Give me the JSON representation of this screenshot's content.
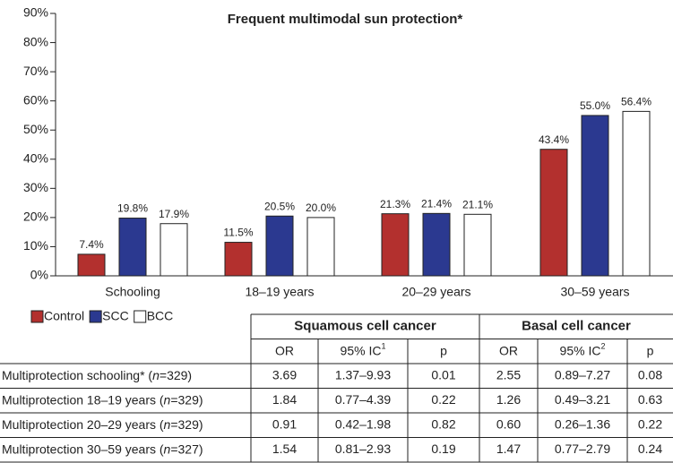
{
  "chart_data": {
    "type": "bar",
    "title": "Frequent multimodal sun protection*",
    "categories": [
      "Schooling",
      "18–19 years",
      "20–29 years",
      "30–59 years"
    ],
    "series": [
      {
        "name": "Control",
        "color": "#b3302e",
        "values": [
          7.4,
          11.5,
          21.3,
          43.4
        ],
        "value_labels": [
          "7.4%",
          "11.5%",
          "21.3%",
          "43.4%"
        ]
      },
      {
        "name": "SCC",
        "color": "#2b3990",
        "values": [
          19.8,
          20.5,
          21.4,
          55.0
        ],
        "value_labels": [
          "19.8%",
          "20.5%",
          "21.4%",
          "55.0%"
        ]
      },
      {
        "name": "BCC",
        "color": "#ffffff",
        "values": [
          17.9,
          20.0,
          21.1,
          56.4
        ],
        "value_labels": [
          "17.9%",
          "20.0%",
          "21.1%",
          "56.4%"
        ]
      }
    ],
    "ylim": [
      0,
      90
    ],
    "yticks": [
      {
        "value": 0,
        "label": "0%"
      },
      {
        "value": 10,
        "label": "10%"
      },
      {
        "value": 20,
        "label": "20%"
      },
      {
        "value": 30,
        "label": "30%"
      },
      {
        "value": 40,
        "label": "40%"
      },
      {
        "value": 50,
        "label": "50%"
      },
      {
        "value": 60,
        "label": "60%"
      },
      {
        "value": 70,
        "label": "70%"
      },
      {
        "value": 80,
        "label": "80%"
      },
      {
        "value": 90,
        "label": "90%"
      }
    ],
    "grid": false,
    "legend": "bottom-left"
  },
  "table": {
    "groups": [
      "Squamous cell cancer",
      "Basal cell cancer"
    ],
    "columns": [
      {
        "text": "OR"
      },
      {
        "text": "95% IC",
        "sup": "1"
      },
      {
        "text": "p"
      },
      {
        "text": "OR"
      },
      {
        "text": "95% IC",
        "sup": "2"
      },
      {
        "text": "p"
      }
    ],
    "rows": [
      {
        "label": {
          "before": "Multiprotection schooling* (",
          "italic": "n",
          "after": "=329)"
        },
        "cells": [
          "3.69",
          "1.37–9.93",
          "0.01",
          "2.55",
          "0.89–7.27",
          "0.08"
        ]
      },
      {
        "label": {
          "before": "Multiprotection 18–19 years (",
          "italic": "n",
          "after": "=329)"
        },
        "cells": [
          "1.84",
          "0.77–4.39",
          "0.22",
          "1.26",
          "0.49–3.21",
          "0.63"
        ]
      },
      {
        "label": {
          "before": "Multiprotection 20–29 years (",
          "italic": "n",
          "after": "=329)"
        },
        "cells": [
          "0.91",
          "0.42–1.98",
          "0.82",
          "0.60",
          "0.26–1.36",
          "0.22"
        ]
      },
      {
        "label": {
          "before": "Multiprotection 30–59 years (",
          "italic": "n",
          "after": "=327)"
        },
        "cells": [
          "1.54",
          "0.81–2.93",
          "0.19",
          "1.47",
          "0.77–2.79",
          "0.24"
        ]
      }
    ]
  }
}
